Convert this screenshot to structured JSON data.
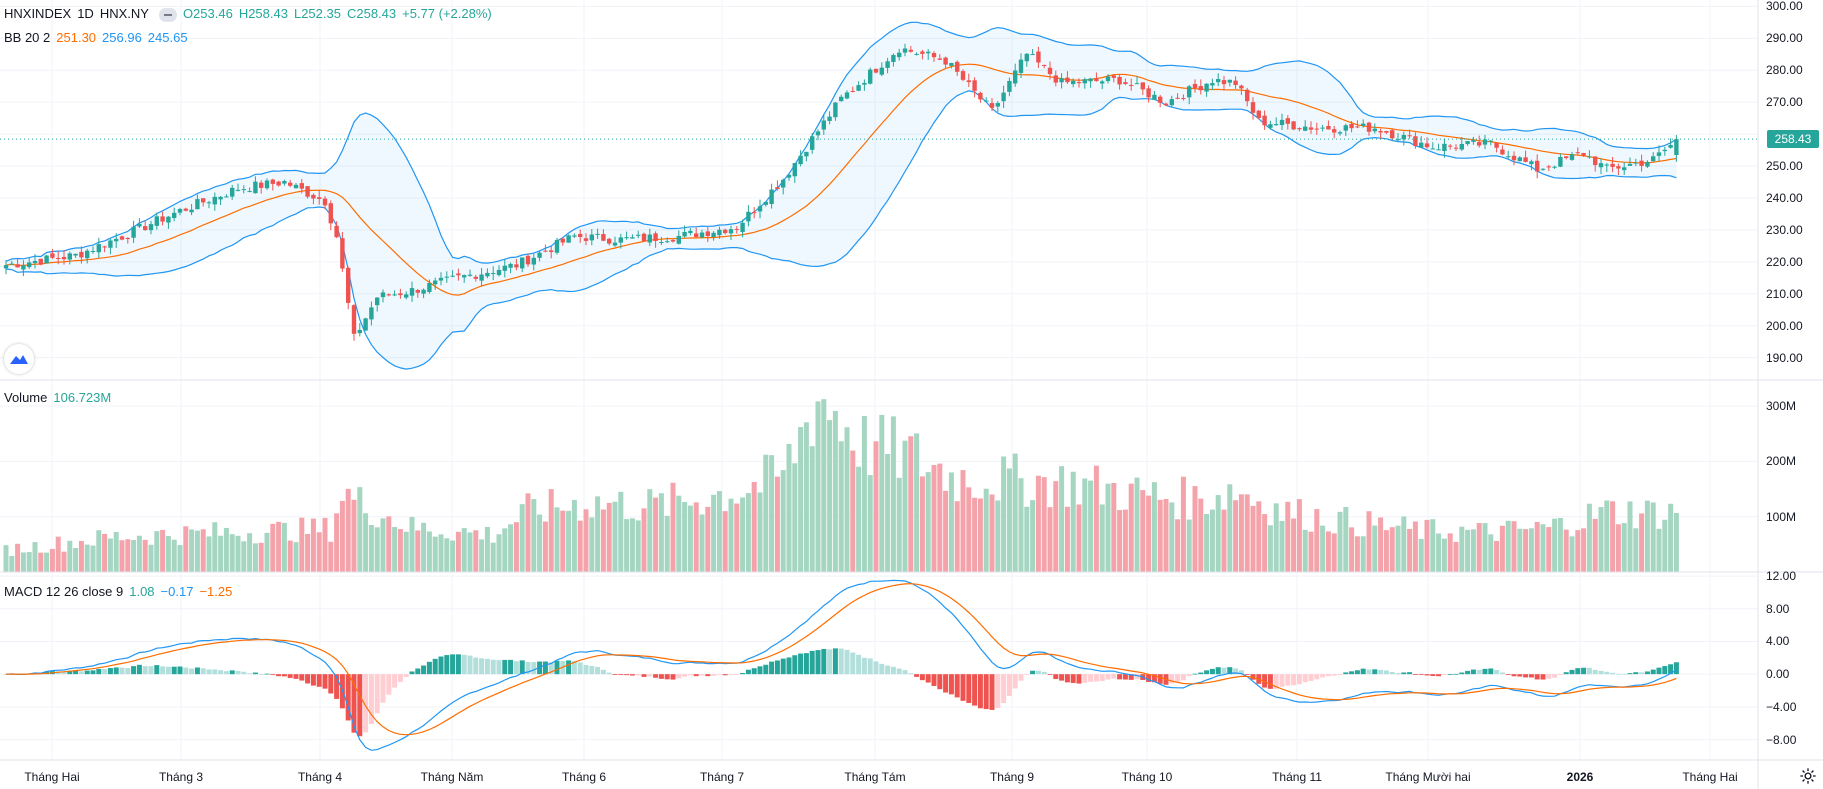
{
  "header": {
    "symbol": "HNXINDEX",
    "interval": "1D",
    "exchange": "HNX.NY",
    "open_label": "O253.46",
    "high_label": "H258.43",
    "low_label": "L252.35",
    "close_label": "C258.43",
    "change_label": "+5.77 (+2.28%)"
  },
  "bb_legend": {
    "label": "BB 20 2",
    "basis": "251.30",
    "upper": "256.96",
    "lower": "245.65"
  },
  "volume_legend": {
    "label": "Volume",
    "value": "106.723M"
  },
  "macd_legend": {
    "label": "MACD 12 26 close 9",
    "hist": "1.08",
    "macd": "−0.17",
    "signal": "−1.25"
  },
  "price_tag": "258.43",
  "colors": {
    "up": "#26a69a",
    "down": "#ef5350",
    "bb_basis": "#ff6d00",
    "bb_band": "#2196f3",
    "macd_line": "#2196f3",
    "signal_line": "#ff6d00"
  },
  "chart_data": {
    "type": "candlestick",
    "symbol": "HNXINDEX",
    "price_axis": {
      "ticks": [
        "190.00",
        "200.00",
        "210.00",
        "220.00",
        "230.00",
        "240.00",
        "250.00",
        "260.00",
        "270.00",
        "280.00",
        "290.00",
        "300.00"
      ],
      "ylim": [
        183,
        302
      ]
    },
    "volume_axis": {
      "ticks": [
        "100M",
        "200M",
        "300M"
      ]
    },
    "macd_axis": {
      "ticks": [
        "−8.00",
        "−4.00",
        "0.00",
        "4.00",
        "8.00",
        "12.00"
      ],
      "ylim": [
        -10.5,
        12.5
      ]
    },
    "x_axis": {
      "ticks": [
        "Tháng Hai",
        "Tháng 3",
        "Tháng 4",
        "Tháng Năm",
        "Tháng 6",
        "Tháng 7",
        "Tháng Tám",
        "Tháng 9",
        "Tháng 10",
        "Tháng 11",
        "Tháng Mười hai",
        "2026",
        "Tháng Hai"
      ]
    },
    "last_close": 258.43,
    "close_anchors": [
      [
        0,
        219
      ],
      [
        12,
        222
      ],
      [
        20,
        228
      ],
      [
        30,
        236
      ],
      [
        40,
        243
      ],
      [
        48,
        245
      ],
      [
        55,
        239
      ],
      [
        57,
        228
      ],
      [
        60,
        196
      ],
      [
        64,
        209
      ],
      [
        70,
        211
      ],
      [
        78,
        215
      ],
      [
        88,
        219
      ],
      [
        98,
        228
      ],
      [
        106,
        227
      ],
      [
        116,
        228
      ],
      [
        126,
        231
      ],
      [
        134,
        246
      ],
      [
        144,
        271
      ],
      [
        154,
        287
      ],
      [
        162,
        283
      ],
      [
        170,
        267
      ],
      [
        176,
        285
      ],
      [
        182,
        276
      ],
      [
        192,
        277
      ],
      [
        200,
        270
      ],
      [
        208,
        277
      ],
      [
        212,
        276
      ],
      [
        216,
        264
      ],
      [
        226,
        262
      ],
      [
        236,
        262
      ],
      [
        246,
        256
      ],
      [
        256,
        257
      ],
      [
        264,
        249
      ],
      [
        272,
        254
      ],
      [
        276,
        249
      ],
      [
        284,
        252
      ],
      [
        288,
        258
      ]
    ],
    "volume_anchors_M": [
      [
        0,
        40
      ],
      [
        20,
        65
      ],
      [
        40,
        72
      ],
      [
        56,
        78
      ],
      [
        58,
        145
      ],
      [
        60,
        130
      ],
      [
        70,
        80
      ],
      [
        84,
        68
      ],
      [
        90,
        110
      ],
      [
        100,
        125
      ],
      [
        112,
        120
      ],
      [
        126,
        145
      ],
      [
        134,
        175
      ],
      [
        140,
        320
      ],
      [
        148,
        230
      ],
      [
        156,
        210
      ],
      [
        164,
        170
      ],
      [
        176,
        165
      ],
      [
        184,
        160
      ],
      [
        196,
        140
      ],
      [
        206,
        130
      ],
      [
        212,
        150
      ],
      [
        220,
        110
      ],
      [
        232,
        90
      ],
      [
        244,
        75
      ],
      [
        256,
        72
      ],
      [
        266,
        80
      ],
      [
        276,
        110
      ],
      [
        288,
        106.7
      ]
    ],
    "series": [
      {
        "name": "BB 20 2"
      },
      {
        "name": "Volume"
      },
      {
        "name": "MACD 12 26 close 9"
      }
    ]
  }
}
